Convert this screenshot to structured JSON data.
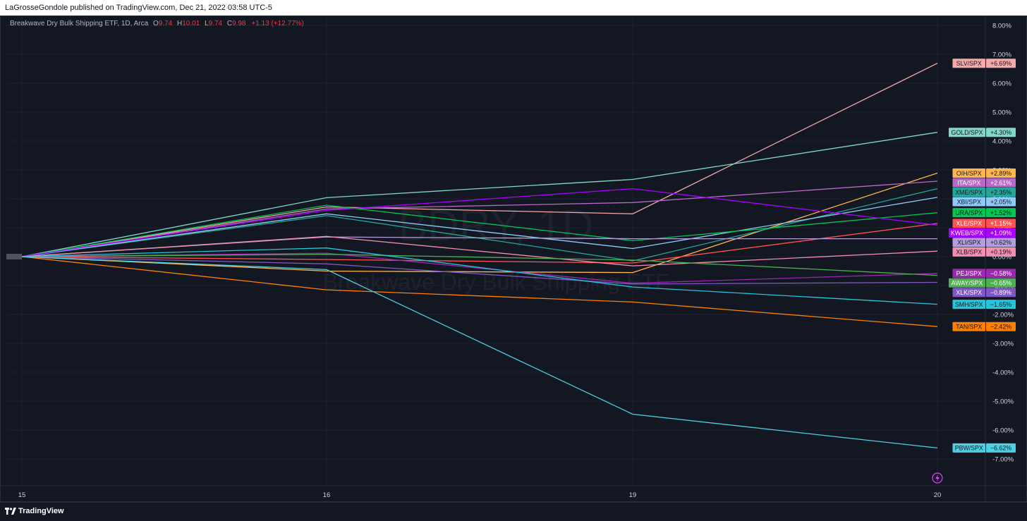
{
  "header": {
    "published_text": "LaGrosseGondole published on TradingView.com, Dec 21, 2022 03:58 UTC-5"
  },
  "legend": {
    "symbol_text": "Breakwave Dry Bulk Shipping ETF, 1D, Arca",
    "o_label": "O",
    "o_value": "9.74",
    "h_label": "H",
    "h_value": "10.01",
    "l_label": "L",
    "l_value": "9.74",
    "c_label": "C",
    "c_value": "9.98",
    "change": "+1.13 (+12.77%)"
  },
  "watermark": {
    "ticker": "BDRY, 1D",
    "name": "Breakwave Dry Bulk Shipping ETF"
  },
  "footer": {
    "brand": "TradingView"
  },
  "colors": {
    "background": "#131722",
    "grid": "#1e222d",
    "axis_text": "#d1d4dc"
  },
  "chart_data": {
    "type": "line",
    "x": [
      "15",
      "16",
      "19",
      "20"
    ],
    "y_unit": "%",
    "ylim": [
      -7.5,
      8.3
    ],
    "y_ticks": [
      "8.00%",
      "7.00%",
      "6.00%",
      "5.00%",
      "4.00%",
      "3.00%",
      "2.00%",
      "1.00%",
      "0.00%",
      "-1.00%",
      "-2.00%",
      "-3.00%",
      "-4.00%",
      "-5.00%",
      "-6.00%",
      "-7.00%"
    ],
    "y_tick_values": [
      8,
      7,
      6,
      5,
      4,
      3,
      2,
      1,
      0,
      -1,
      -2,
      -3,
      -4,
      -5,
      -6,
      -7
    ],
    "grid": true,
    "series": [
      {
        "name": "SLV/SPX",
        "label": "+6.69%",
        "color": "#f7a8a8",
        "label_color": "#131722",
        "values": [
          0,
          1.72,
          1.48,
          6.69
        ]
      },
      {
        "name": "GOLD/SPX",
        "label": "+4.30%",
        "color": "#7fd8c8",
        "label_color": "#131722",
        "values": [
          0,
          2.04,
          2.67,
          4.3
        ]
      },
      {
        "name": "OIH/SPX",
        "label": "+2.89%",
        "color": "#ffb74d",
        "label_color": "#131722",
        "values": [
          0,
          -0.5,
          -0.55,
          2.89
        ]
      },
      {
        "name": "ITA/SPX",
        "label": "+2.61%",
        "color": "#ba68c8",
        "label_color": "#ffffff",
        "values": [
          0,
          1.65,
          1.87,
          2.61
        ]
      },
      {
        "name": "XME/SPX",
        "label": "+2.35%",
        "color": "#26a69a",
        "label_color": "#131722",
        "values": [
          0,
          1.42,
          -0.15,
          2.35
        ]
      },
      {
        "name": "XBI/SPX",
        "label": "+2.05%",
        "color": "#90caf9",
        "label_color": "#131722",
        "values": [
          0,
          1.48,
          0.28,
          2.05
        ]
      },
      {
        "name": "URA/SPX",
        "label": "+1.52%",
        "color": "#00c853",
        "label_color": "#131722",
        "values": [
          0,
          1.78,
          0.55,
          1.52
        ]
      },
      {
        "name": "XLE/SPX",
        "label": "+1.15%",
        "color": "#ff5252",
        "label_color": "#ffffff",
        "values": [
          0,
          -0.1,
          -0.22,
          1.15
        ]
      },
      {
        "name": "KWEB/SPX",
        "label": "+1.09%",
        "color": "#aa00ff",
        "label_color": "#ffffff",
        "values": [
          0,
          1.6,
          2.35,
          1.09
        ]
      },
      {
        "name": "XLI/SPX",
        "label": "+0.62%",
        "color": "#b39ddb",
        "label_color": "#131722",
        "values": [
          0,
          0.68,
          0.62,
          0.62
        ]
      },
      {
        "name": "XLB/SPX",
        "label": "+0.19%",
        "color": "#f48fb1",
        "label_color": "#131722",
        "values": [
          0,
          0.7,
          -0.32,
          0.19
        ]
      },
      {
        "name": "PEJ/SPX",
        "label": "−0.58%",
        "color": "#9c27b0",
        "label_color": "#ffffff",
        "values": [
          0,
          0.12,
          -0.92,
          -0.58
        ]
      },
      {
        "name": "AWAY/SPX",
        "label": "−0.65%",
        "color": "#4caf50",
        "label_color": "#ffffff",
        "values": [
          0,
          0.08,
          -0.12,
          -0.65
        ]
      },
      {
        "name": "XLK/SPX",
        "label": "−0.89%",
        "color": "#7e57c2",
        "label_color": "#ffffff",
        "values": [
          0,
          -0.25,
          -0.95,
          -0.89
        ]
      },
      {
        "name": "SMH/SPX",
        "label": "−1.65%",
        "color": "#26c6da",
        "label_color": "#131722",
        "values": [
          0,
          0.3,
          -1.05,
          -1.65
        ]
      },
      {
        "name": "TAN/SPX",
        "label": "−2.42%",
        "color": "#ff7f00",
        "label_color": "#131722",
        "values": [
          0,
          -1.15,
          -1.57,
          -2.42
        ]
      },
      {
        "name": "PBW/SPX",
        "label": "−6.62%",
        "color": "#4dd0e1",
        "label_color": "#131722",
        "values": [
          0,
          -0.45,
          -5.45,
          -6.62
        ]
      }
    ]
  }
}
